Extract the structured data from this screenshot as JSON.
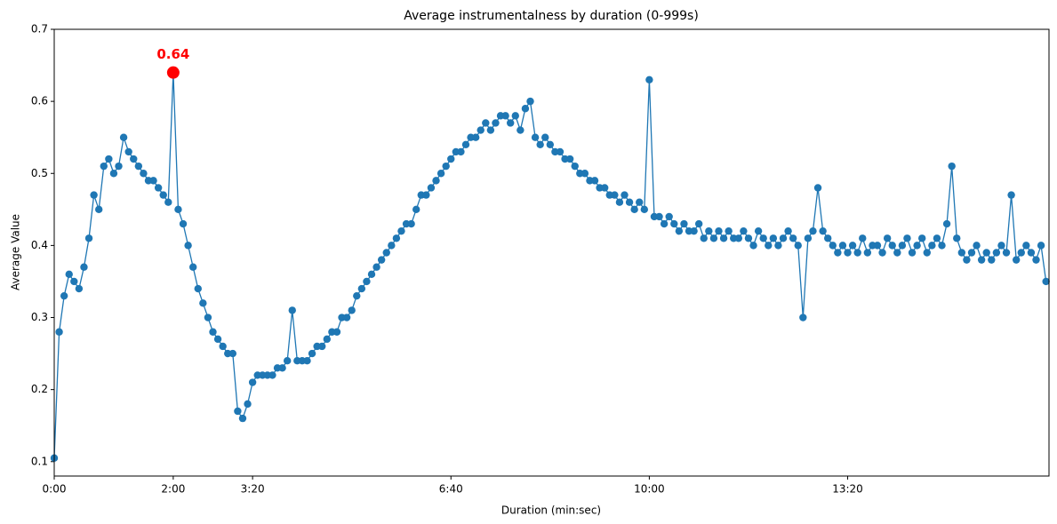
{
  "chart_data": {
    "type": "line",
    "title": "Average instrumentalness by duration (0-999s)",
    "xlabel": "Duration (min:sec)",
    "ylabel": "Average Value",
    "xlim": [
      0,
      1003
    ],
    "ylim": [
      0.08,
      0.7
    ],
    "xticks": [
      {
        "value": 0,
        "label": "0:00"
      },
      {
        "value": 120,
        "label": "2:00"
      },
      {
        "value": 200,
        "label": "3:20"
      },
      {
        "value": 400,
        "label": "6:40"
      },
      {
        "value": 600,
        "label": "10:00"
      },
      {
        "value": 800,
        "label": "13:20"
      }
    ],
    "yticks": [
      0.1,
      0.2,
      0.3,
      0.4,
      0.5,
      0.6,
      0.7
    ],
    "x": [
      0,
      5,
      10,
      15,
      20,
      25,
      30,
      35,
      40,
      45,
      50,
      55,
      60,
      65,
      70,
      75,
      80,
      85,
      90,
      95,
      100,
      105,
      110,
      115,
      120,
      125,
      130,
      135,
      140,
      145,
      150,
      155,
      160,
      165,
      170,
      175,
      180,
      185,
      190,
      195,
      200,
      205,
      210,
      215,
      220,
      225,
      230,
      235,
      240,
      245,
      250,
      255,
      260,
      265,
      270,
      275,
      280,
      285,
      290,
      295,
      300,
      305,
      310,
      315,
      320,
      325,
      330,
      335,
      340,
      345,
      350,
      355,
      360,
      365,
      370,
      375,
      380,
      385,
      390,
      395,
      400,
      405,
      410,
      415,
      420,
      425,
      430,
      435,
      440,
      445,
      450,
      455,
      460,
      465,
      470,
      475,
      480,
      485,
      490,
      495,
      500,
      505,
      510,
      515,
      520,
      525,
      530,
      535,
      540,
      545,
      550,
      555,
      560,
      565,
      570,
      575,
      580,
      585,
      590,
      595,
      600,
      605,
      610,
      615,
      620,
      625,
      630,
      635,
      640,
      645,
      650,
      655,
      660,
      665,
      670,
      675,
      680,
      685,
      690,
      695,
      700,
      705,
      710,
      715,
      720,
      725,
      730,
      735,
      740,
      745,
      750,
      755,
      760,
      765,
      770,
      775,
      780,
      785,
      790,
      795,
      800,
      805,
      810,
      815,
      820,
      825,
      830,
      835,
      840,
      845,
      850,
      855,
      860,
      865,
      870,
      875,
      880,
      885,
      890,
      895,
      900,
      905,
      910,
      915,
      920,
      925,
      930,
      935,
      940,
      945,
      950,
      955,
      960,
      965,
      970,
      975,
      980,
      985,
      990,
      995,
      1000
    ],
    "series": [
      {
        "name": "Average Value",
        "color": "#1f77b4",
        "values": [
          0.105,
          0.28,
          0.33,
          0.36,
          0.35,
          0.34,
          0.37,
          0.41,
          0.47,
          0.45,
          0.51,
          0.52,
          0.5,
          0.51,
          0.55,
          0.53,
          0.52,
          0.51,
          0.5,
          0.49,
          0.49,
          0.48,
          0.47,
          0.46,
          0.64,
          0.45,
          0.43,
          0.4,
          0.37,
          0.34,
          0.32,
          0.3,
          0.28,
          0.27,
          0.26,
          0.25,
          0.25,
          0.17,
          0.16,
          0.18,
          0.21,
          0.22,
          0.22,
          0.22,
          0.22,
          0.23,
          0.23,
          0.24,
          0.31,
          0.24,
          0.24,
          0.24,
          0.25,
          0.26,
          0.26,
          0.27,
          0.28,
          0.28,
          0.3,
          0.3,
          0.31,
          0.33,
          0.34,
          0.35,
          0.36,
          0.37,
          0.38,
          0.39,
          0.4,
          0.41,
          0.42,
          0.43,
          0.43,
          0.45,
          0.47,
          0.47,
          0.48,
          0.49,
          0.5,
          0.51,
          0.52,
          0.53,
          0.53,
          0.54,
          0.55,
          0.55,
          0.56,
          0.57,
          0.56,
          0.57,
          0.58,
          0.58,
          0.57,
          0.58,
          0.56,
          0.59,
          0.6,
          0.55,
          0.54,
          0.55,
          0.54,
          0.53,
          0.53,
          0.52,
          0.52,
          0.51,
          0.5,
          0.5,
          0.49,
          0.49,
          0.48,
          0.48,
          0.47,
          0.47,
          0.46,
          0.47,
          0.46,
          0.45,
          0.46,
          0.45,
          0.63,
          0.44,
          0.44,
          0.43,
          0.44,
          0.43,
          0.42,
          0.43,
          0.42,
          0.42,
          0.43,
          0.41,
          0.42,
          0.41,
          0.42,
          0.41,
          0.42,
          0.41,
          0.41,
          0.42,
          0.41,
          0.4,
          0.42,
          0.41,
          0.4,
          0.41,
          0.4,
          0.41,
          0.42,
          0.41,
          0.4,
          0.3,
          0.41,
          0.42,
          0.48,
          0.42,
          0.41,
          0.4,
          0.39,
          0.4,
          0.39,
          0.4,
          0.39,
          0.41,
          0.39,
          0.4,
          0.4,
          0.39,
          0.41,
          0.4,
          0.39,
          0.4,
          0.41,
          0.39,
          0.4,
          0.41,
          0.39,
          0.4,
          0.41,
          0.4,
          0.43,
          0.51,
          0.41,
          0.39,
          0.38,
          0.39,
          0.4,
          0.38,
          0.39,
          0.38,
          0.39,
          0.4,
          0.39,
          0.47,
          0.38,
          0.39,
          0.4,
          0.39,
          0.38,
          0.4,
          0.35
        ]
      }
    ],
    "annotation": {
      "text": "0.64",
      "x": 120,
      "y": 0.64,
      "color": "red"
    }
  }
}
